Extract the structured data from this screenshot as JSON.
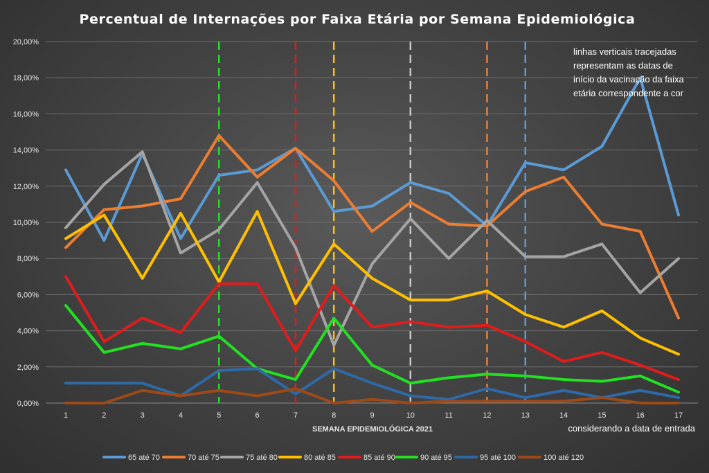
{
  "chart_data": {
    "type": "line",
    "title": "Percentual de Internações por Faixa Etária por Semana Epidemiológica",
    "xlabel": "SEMANA EPIDEMIOLÓGICA 2021",
    "x_note": "considerando a data de entrada",
    "ylabel": "",
    "x": [
      1,
      2,
      3,
      4,
      5,
      6,
      7,
      8,
      9,
      10,
      11,
      12,
      13,
      14,
      15,
      16,
      17
    ],
    "ylim": [
      0,
      20
    ],
    "y_ticks": [
      "0,00%",
      "2,00%",
      "4,00%",
      "6,00%",
      "8,00%",
      "10,00%",
      "12,00%",
      "14,00%",
      "16,00%",
      "18,00%",
      "20,00%"
    ],
    "grid": true,
    "legend_position": "bottom",
    "annotation": [
      "linhas verticais tracejadas",
      "representam as datas de",
      "início da vacinação da faixa",
      "etária correspondente a cor"
    ],
    "series": [
      {
        "name": "65 até 70",
        "color": "#5b9bd5",
        "values": [
          12.9,
          9.0,
          13.8,
          9.1,
          12.6,
          12.9,
          14.1,
          10.6,
          10.9,
          12.2,
          11.6,
          9.8,
          13.3,
          12.9,
          14.2,
          18.0,
          10.4
        ]
      },
      {
        "name": "70 até 75",
        "color": "#ed7d31",
        "values": [
          8.6,
          10.7,
          10.9,
          11.3,
          14.8,
          12.5,
          14.1,
          12.3,
          9.5,
          11.1,
          9.9,
          9.8,
          11.7,
          12.5,
          9.9,
          9.5,
          4.7
        ]
      },
      {
        "name": "75 até 80",
        "color": "#a5a5a5",
        "values": [
          9.7,
          12.1,
          13.9,
          8.3,
          9.6,
          12.2,
          8.6,
          3.2,
          7.7,
          10.2,
          8.0,
          10.1,
          8.1,
          8.1,
          8.8,
          6.1,
          8.0
        ]
      },
      {
        "name": "80 até 85",
        "color": "#ffc000",
        "values": [
          9.1,
          10.4,
          6.9,
          10.5,
          6.7,
          10.6,
          5.5,
          8.8,
          6.9,
          5.7,
          5.7,
          6.2,
          4.9,
          4.2,
          5.1,
          3.6,
          2.7
        ]
      },
      {
        "name": "85 até 90",
        "color": "#e01c1c",
        "values": [
          7.0,
          3.4,
          4.7,
          3.9,
          6.6,
          6.6,
          2.9,
          6.5,
          4.2,
          4.5,
          4.2,
          4.3,
          3.4,
          2.3,
          2.8,
          2.1,
          1.3
        ]
      },
      {
        "name": "90 até 95",
        "color": "#22e022",
        "values": [
          5.4,
          2.8,
          3.3,
          3.0,
          3.7,
          1.9,
          1.3,
          4.7,
          2.1,
          1.1,
          1.4,
          1.6,
          1.5,
          1.3,
          1.2,
          1.5,
          0.6
        ]
      },
      {
        "name": "95 até 100",
        "color": "#2e6aa8",
        "values": [
          1.1,
          1.1,
          1.1,
          0.4,
          1.8,
          1.9,
          0.5,
          1.9,
          1.1,
          0.4,
          0.2,
          0.8,
          0.3,
          0.7,
          0.3,
          0.7,
          0.3
        ]
      },
      {
        "name": "100 até 120",
        "color": "#9e4a18",
        "values": [
          0.0,
          0.0,
          0.7,
          0.4,
          0.7,
          0.4,
          0.8,
          0.0,
          0.2,
          0.0,
          0.1,
          0.1,
          0.1,
          0.1,
          0.3,
          0.0,
          0.0
        ]
      }
    ],
    "vertical_markers": [
      {
        "x": 5,
        "color": "#22e022"
      },
      {
        "x": 7,
        "color": "#e01c1c"
      },
      {
        "x": 8,
        "color": "#ffc000"
      },
      {
        "x": 10,
        "color": "#c8c8c8"
      },
      {
        "x": 12,
        "color": "#ed7d31"
      },
      {
        "x": 13,
        "color": "#5b9bd5"
      }
    ]
  }
}
